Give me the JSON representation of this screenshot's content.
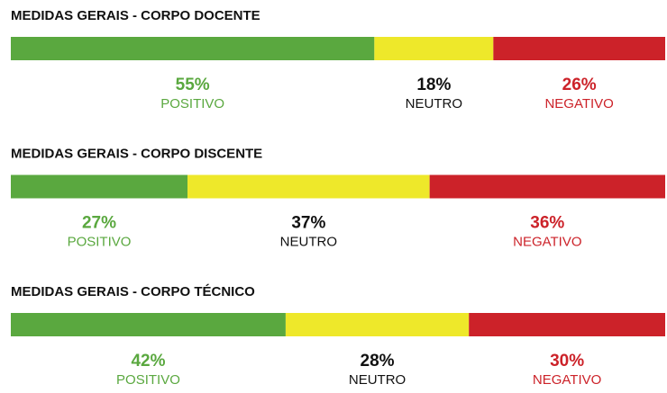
{
  "chart_data": [
    {
      "type": "stacked_bar",
      "title": "MEDIDAS GERAIS - CORPO DOCENTE",
      "series": [
        {
          "name": "POSITIVO",
          "color": "#5aa83f",
          "label_color": "#5aa83f",
          "values": [
            55
          ],
          "value_labels": [
            "55%"
          ]
        },
        {
          "name": "NEUTRO",
          "color": "#eee82a",
          "label_color": "#111111",
          "values": [
            18
          ],
          "value_labels": [
            "18%"
          ]
        },
        {
          "name": "NEGATIVO",
          "color": "#cc2229",
          "label_color": "#cc2229",
          "values": [
            26
          ],
          "value_labels": [
            "26%"
          ]
        }
      ]
    },
    {
      "type": "stacked_bar",
      "title": "MEDIDAS GERAIS - CORPO DISCENTE",
      "series": [
        {
          "name": "POSITIVO",
          "color": "#5aa83f",
          "label_color": "#5aa83f",
          "values": [
            27
          ],
          "value_labels": [
            "27%"
          ]
        },
        {
          "name": "NEUTRO",
          "color": "#eee82a",
          "label_color": "#111111",
          "values": [
            37
          ],
          "value_labels": [
            "37%"
          ]
        },
        {
          "name": "NEGATIVO",
          "color": "#cc2229",
          "label_color": "#cc2229",
          "values": [
            36
          ],
          "value_labels": [
            "36%"
          ]
        }
      ]
    },
    {
      "type": "stacked_bar",
      "title": "MEDIDAS GERAIS - CORPO TÉCNICO",
      "series": [
        {
          "name": "POSITIVO",
          "color": "#5aa83f",
          "label_color": "#5aa83f",
          "values": [
            42
          ],
          "value_labels": [
            "42%"
          ]
        },
        {
          "name": "NEUTRO",
          "color": "#eee82a",
          "label_color": "#111111",
          "values": [
            28
          ],
          "value_labels": [
            "28%"
          ]
        },
        {
          "name": "NEGATIVO",
          "color": "#cc2229",
          "label_color": "#cc2229",
          "values": [
            30
          ],
          "value_labels": [
            "30%"
          ]
        }
      ]
    }
  ]
}
